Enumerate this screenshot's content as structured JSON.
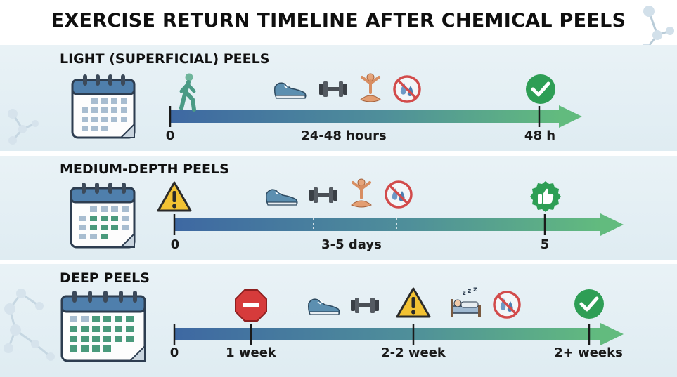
{
  "title": "EXERCISE RETURN TIMELINE AFTER CHEMICAL PEELS",
  "sections": [
    {
      "label": "LIGHT (SUPERFICIAL) PEELS",
      "ticks": {
        "start": "0",
        "middle": "24-48 hours",
        "end": "48 h"
      },
      "icons": [
        "calendar-icon",
        "walking-person-icon",
        "sneaker-icon",
        "dumbbell-icon",
        "yoga-icon",
        "no-sweat-icon",
        "checkmark-icon"
      ]
    },
    {
      "label": "MEDIUM-DEPTH PEELS",
      "ticks": {
        "start": "0",
        "middle": "3-5 days",
        "end": "5"
      },
      "icons": [
        "calendar-icon",
        "warning-icon",
        "sneaker-icon",
        "dumbbell-icon",
        "yoga-icon",
        "no-sweat-icon",
        "thumbs-up-icon"
      ]
    },
    {
      "label": "DEEP PEELS",
      "ticks": {
        "start": "0",
        "first": "1 week",
        "middle": "2-2 week",
        "end": "2+ weeks"
      },
      "icons": [
        "calendar-icon",
        "stop-icon",
        "sneaker-icon",
        "dumbbell-icon",
        "warning-icon",
        "sleeping-icon",
        "no-sweat-icon",
        "checkmark-icon"
      ]
    }
  ],
  "colors": {
    "arrow_start": "#3f6ea5",
    "arrow_end": "#5db47e",
    "check_green": "#2e9e55",
    "warning_yellow": "#f2c233",
    "stop_red": "#d63b3b",
    "band_bg": "#e4eff4"
  }
}
